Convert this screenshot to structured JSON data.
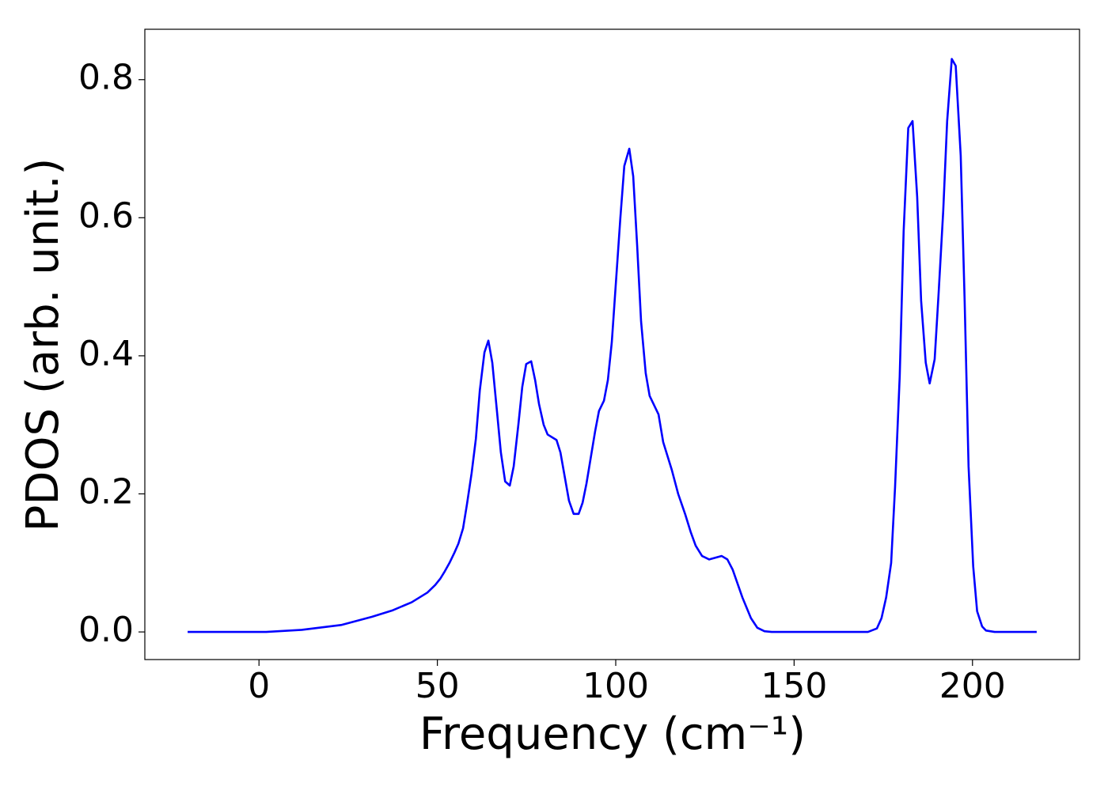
{
  "chart_data": {
    "type": "line",
    "xlabel": "Frequency (cm⁻¹)",
    "ylabel": "PDOS (arb. unit.)",
    "x": [
      -20,
      2,
      12,
      23,
      31.7,
      37.3,
      42.8,
      47.2,
      49.4,
      50.8,
      52.1,
      53.4,
      54.8,
      55.9,
      57.2,
      58.3,
      59.6,
      60.8,
      61.9,
      63.2,
      64.3,
      65.4,
      66.7,
      67.8,
      69,
      70.3,
      71.4,
      72.7,
      73.8,
      74.9,
      76.3,
      77.4,
      78.5,
      79.8,
      80.9,
      83.4,
      84.5,
      86.9,
      88.2,
      89.6,
      90.7,
      91.8,
      94.2,
      95.3,
      96.7,
      97.8,
      98.9,
      101.3,
      102.4,
      103.8,
      104.9,
      106,
      107.1,
      108.4,
      109.5,
      112,
      113.3,
      115.7,
      117.5,
      119.5,
      121,
      122.4,
      124.2,
      126.2,
      129.7,
      131.3,
      132.8,
      135.5,
      137.9,
      139.7,
      141.7,
      143.7,
      170.7,
      173.2,
      174.5,
      175.8,
      177.2,
      178.3,
      179.6,
      180.7,
      182,
      183.2,
      184.5,
      185.6,
      186.9,
      188,
      189.4,
      190.5,
      191.8,
      192.9,
      194.2,
      195.3,
      196.7,
      197.8,
      198.9,
      200.2,
      201.3,
      202.7,
      203.8,
      206.2,
      218
    ],
    "series": [
      {
        "name": "PDOS",
        "color": "#0000ff",
        "values": [
          0,
          0,
          0.003,
          0.01,
          0.022,
          0.031,
          0.043,
          0.057,
          0.068,
          0.077,
          0.088,
          0.1,
          0.115,
          0.128,
          0.15,
          0.185,
          0.23,
          0.28,
          0.35,
          0.405,
          0.422,
          0.39,
          0.32,
          0.26,
          0.218,
          0.212,
          0.24,
          0.3,
          0.355,
          0.388,
          0.392,
          0.365,
          0.33,
          0.3,
          0.286,
          0.278,
          0.26,
          0.19,
          0.171,
          0.171,
          0.187,
          0.215,
          0.29,
          0.32,
          0.335,
          0.365,
          0.42,
          0.6,
          0.675,
          0.7,
          0.66,
          0.56,
          0.45,
          0.375,
          0.342,
          0.315,
          0.275,
          0.235,
          0.2,
          0.17,
          0.145,
          0.125,
          0.11,
          0.105,
          0.11,
          0.105,
          0.09,
          0.05,
          0.02,
          0.006,
          0.001,
          0,
          0,
          0.005,
          0.02,
          0.05,
          0.1,
          0.21,
          0.37,
          0.58,
          0.73,
          0.74,
          0.63,
          0.48,
          0.39,
          0.36,
          0.395,
          0.49,
          0.61,
          0.74,
          0.83,
          0.82,
          0.69,
          0.48,
          0.24,
          0.095,
          0.03,
          0.008,
          0.002,
          0,
          0
        ]
      }
    ],
    "xlim": [
      -32,
      230
    ],
    "ylim": [
      -0.04,
      0.873
    ],
    "xticks": [
      0,
      50,
      100,
      150,
      200
    ],
    "yticks": [
      {
        "value": 0,
        "label": "0.0"
      },
      0.2,
      0.4,
      0.6,
      0.8
    ],
    "grid": false
  }
}
